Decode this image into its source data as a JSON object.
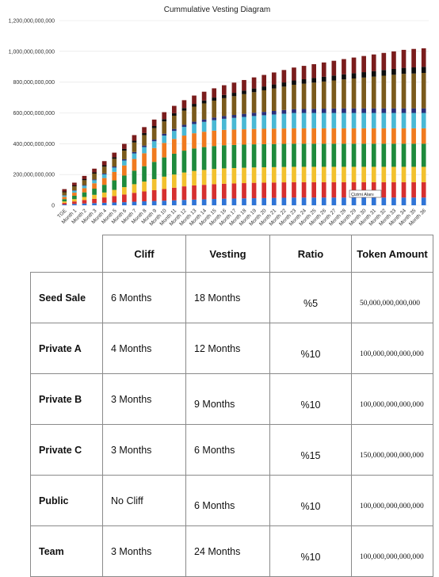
{
  "chart_data": {
    "type": "bar",
    "stacked": true,
    "title": "Cummulative Vesting Diagram",
    "categories": [
      "TGE",
      "Month 1",
      "Month 2",
      "Month 3",
      "Month 4",
      "Month 5",
      "Month 6",
      "Month 7",
      "Month 8",
      "Month 9",
      "Month 10",
      "Month 11",
      "Month 12",
      "Month 13",
      "Month 14",
      "Month 15",
      "Month 16",
      "Month 17",
      "Month 18",
      "Month 19",
      "Month 20",
      "Month 21",
      "Month 22",
      "Month 23",
      "Month 24",
      "Month 25",
      "Month 26",
      "Month 27",
      "Month 28",
      "Month 29",
      "Month 30",
      "Month 31",
      "Month 32",
      "Month 33",
      "Month 34",
      "Month 35",
      "Month 36"
    ],
    "y_ticks": [
      "0",
      "200,000,000,000",
      "400,000,000,000",
      "600,000,000,000",
      "800,000,000,000",
      "1,000,000,000,000",
      "1,200,000,000,000"
    ],
    "ylim": [
      0,
      1200000000000
    ],
    "grid": true,
    "series": [
      {
        "color": "#2f74d6",
        "values": [
          5,
          9,
          12,
          14,
          16,
          18,
          20,
          23,
          26,
          28,
          30,
          32,
          35,
          37,
          39,
          41,
          43,
          44,
          45,
          46,
          47,
          48,
          49,
          50,
          50,
          50,
          50,
          50,
          50,
          50,
          50,
          50,
          50,
          50,
          50,
          50,
          50
        ]
      },
      {
        "color": "#d62f2f",
        "values": [
          10,
          16,
          22,
          28,
          35,
          42,
          50,
          58,
          64,
          70,
          76,
          82,
          88,
          92,
          94,
          96,
          97,
          98,
          99,
          100,
          100,
          100,
          100,
          100,
          100,
          100,
          100,
          100,
          100,
          100,
          100,
          100,
          100,
          100,
          100,
          100,
          100
        ]
      },
      {
        "color": "#f2c12e",
        "values": [
          10,
          15,
          20,
          26,
          32,
          40,
          48,
          56,
          64,
          72,
          80,
          86,
          90,
          94,
          97,
          99,
          100,
          100,
          100,
          100,
          100,
          100,
          100,
          100,
          100,
          100,
          100,
          100,
          100,
          100,
          100,
          100,
          100,
          100,
          100,
          100,
          100
        ]
      },
      {
        "color": "#1e8a3c",
        "values": [
          15,
          22,
          30,
          40,
          50,
          62,
          75,
          88,
          100,
          112,
          125,
          135,
          142,
          146,
          148,
          149,
          150,
          150,
          150,
          150,
          150,
          150,
          150,
          150,
          150,
          150,
          150,
          150,
          150,
          150,
          150,
          150,
          150,
          150,
          150,
          150,
          150
        ]
      },
      {
        "color": "#f07a1f",
        "values": [
          15,
          20,
          27,
          35,
          44,
          55,
          66,
          76,
          84,
          90,
          94,
          96,
          98,
          99,
          100,
          100,
          100,
          100,
          100,
          100,
          100,
          100,
          100,
          100,
          100,
          100,
          100,
          100,
          100,
          100,
          100,
          100,
          100,
          100,
          100,
          100,
          100
        ]
      },
      {
        "color": "#49b8d4",
        "values": [
          8,
          12,
          16,
          20,
          24,
          28,
          32,
          36,
          40,
          44,
          48,
          52,
          56,
          60,
          64,
          68,
          72,
          76,
          80,
          84,
          88,
          92,
          96,
          100,
          100,
          100,
          100,
          100,
          100,
          100,
          100,
          100,
          100,
          100,
          100,
          100,
          100
        ]
      },
      {
        "color": "#2a2f7a",
        "values": [
          2,
          3,
          4,
          5,
          6,
          7,
          8,
          9,
          10,
          11,
          12,
          13,
          14,
          15,
          16,
          17,
          18,
          19,
          20,
          21,
          22,
          23,
          24,
          25,
          26,
          27,
          28,
          29,
          30,
          30,
          30,
          30,
          30,
          30,
          30,
          30,
          30
        ]
      },
      {
        "color": "#7a5a1c",
        "values": [
          20,
          26,
          32,
          38,
          44,
          50,
          56,
          62,
          68,
          74,
          80,
          86,
          92,
          98,
          104,
          110,
          116,
          122,
          128,
          134,
          140,
          146,
          152,
          158,
          164,
          170,
          176,
          182,
          188,
          194,
          200,
          206,
          212,
          218,
          224,
          226,
          230
        ]
      },
      {
        "color": "#0d0d0d",
        "values": [
          5,
          6,
          7,
          8,
          9,
          10,
          11,
          12,
          13,
          14,
          15,
          16,
          17,
          18,
          19,
          20,
          21,
          22,
          23,
          24,
          25,
          26,
          27,
          28,
          29,
          30,
          31,
          32,
          33,
          34,
          35,
          36,
          37,
          38,
          39,
          40,
          40
        ]
      },
      {
        "color": "#7a1c1c",
        "values": [
          15,
          18,
          21,
          24,
          27,
          30,
          33,
          36,
          39,
          42,
          45,
          48,
          51,
          54,
          57,
          60,
          63,
          66,
          69,
          72,
          75,
          78,
          81,
          84,
          87,
          90,
          93,
          96,
          99,
          102,
          105,
          108,
          111,
          114,
          117,
          120,
          120
        ]
      }
    ],
    "annotation": "Çizimi Alanı"
  },
  "table": {
    "headers": [
      "",
      "Cliff",
      "Vesting",
      "Ratio",
      "Token Amount"
    ],
    "rows": [
      {
        "name": "Seed Sale",
        "cliff": "6 Months",
        "vesting": "18 Months",
        "ratio": "%5",
        "amount": "50,000,000,000,000"
      },
      {
        "name": "Private A",
        "cliff": "4 Months",
        "vesting": "12 Months",
        "ratio": "%10",
        "amount": "100,000,000,000,000"
      },
      {
        "name": "Private B",
        "cliff": "3 Months",
        "vesting": "9 Months",
        "ratio": "%10",
        "amount": "100,000,000,000,000"
      },
      {
        "name": "Private C",
        "cliff": "3 Months",
        "vesting": "6 Months",
        "ratio": "%15",
        "amount": "150,000,000,000,000"
      },
      {
        "name": "Public",
        "cliff": "No Cliff",
        "vesting": "6 Months",
        "ratio": "%10",
        "amount": "100,000,000,000,000"
      },
      {
        "name": "Team",
        "cliff": "3 Months",
        "vesting": "24 Months",
        "ratio": "%10",
        "amount": "100,000,000,000,000"
      }
    ]
  }
}
